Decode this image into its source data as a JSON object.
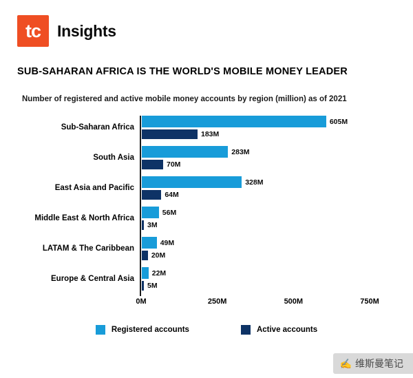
{
  "header": {
    "logo_text": "tc",
    "brand": "Insights"
  },
  "title": "SUB-SAHARAN AFRICA IS THE WORLD'S MOBILE MONEY LEADER",
  "subtitle": "Number of registered and active mobile money accounts by region (million) as of 2021",
  "chart_data": {
    "type": "bar",
    "orientation": "horizontal",
    "title": "Number of registered and active mobile money accounts by region (million) as of 2021",
    "categories": [
      "Sub-Saharan Africa",
      "South Asia",
      "East Asia and Pacific",
      "Middle East & North Africa",
      "LATAM & The Caribbean",
      "Europe & Central Asia"
    ],
    "series": [
      {
        "name": "Registered accounts",
        "color": "#189cd9",
        "values": [
          605,
          283,
          328,
          56,
          49,
          22
        ],
        "labels": [
          "605M",
          "283M",
          "328M",
          "56M",
          "49M",
          "22M"
        ]
      },
      {
        "name": "Active accounts",
        "color": "#0e3366",
        "values": [
          183,
          70,
          64,
          3,
          20,
          5
        ],
        "labels": [
          "183M",
          "70M",
          "64M",
          "3M",
          "20M",
          "5M"
        ]
      }
    ],
    "xlabel": "",
    "ylabel": "",
    "xlim": [
      0,
      750
    ],
    "x_ticks": [
      "0M",
      "250M",
      "500M",
      "750M"
    ],
    "grid": false,
    "legend_position": "bottom"
  },
  "legend": {
    "registered": "Registered accounts",
    "active": "Active accounts"
  },
  "watermark": {
    "icon": "✍",
    "text": "维斯曼笔记"
  },
  "colors": {
    "registered": "#189cd9",
    "active": "#0e3366",
    "logo": "#ef4e23"
  }
}
